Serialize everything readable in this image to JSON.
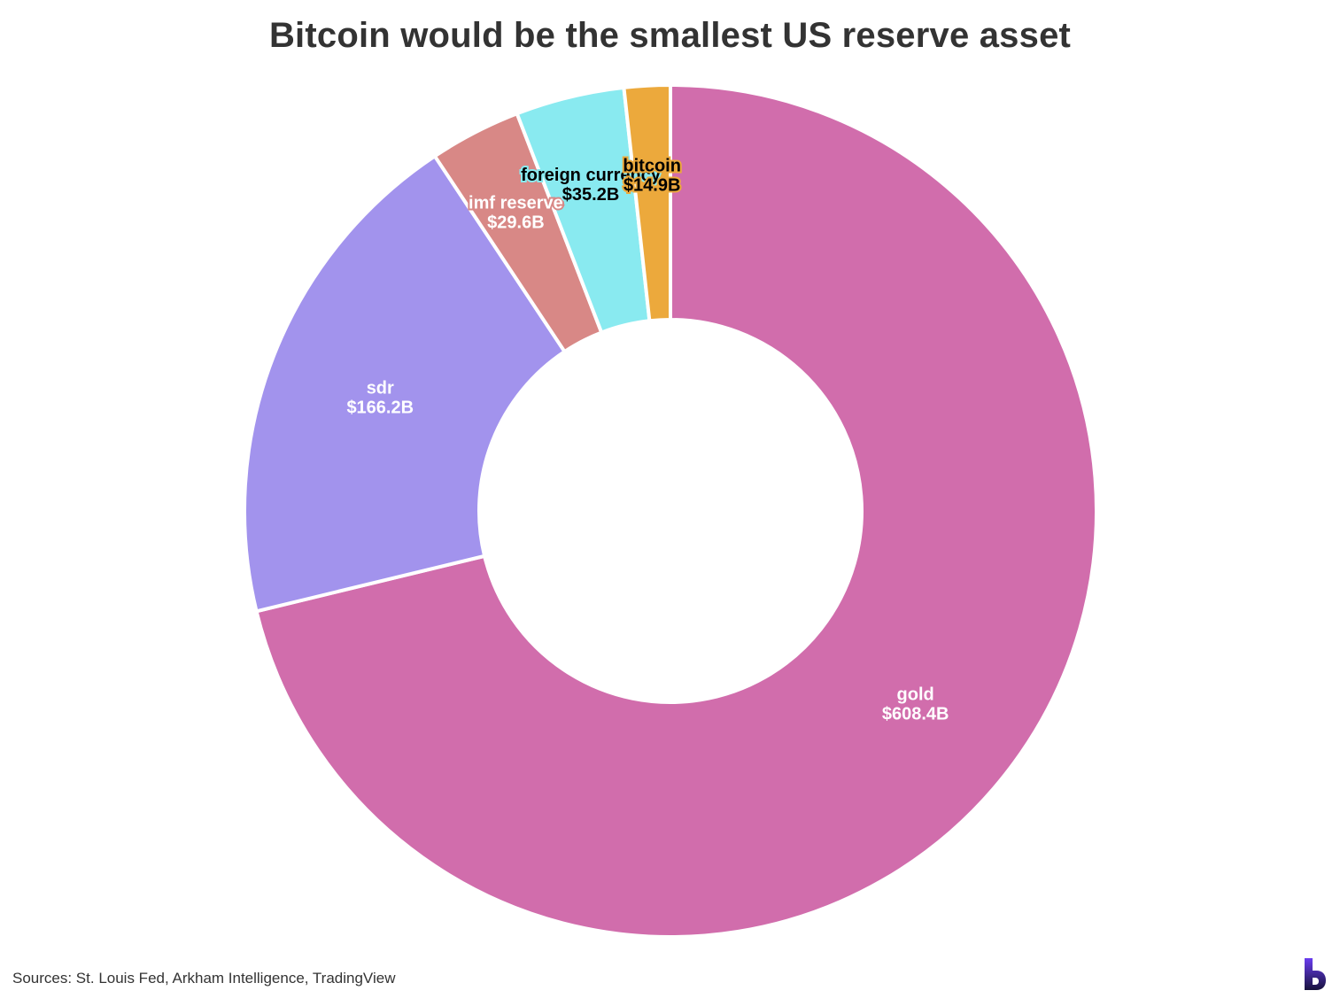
{
  "chart_data": {
    "type": "pie",
    "title": "Bitcoin would be the smallest US reserve asset",
    "variant": "donut",
    "slices": [
      {
        "label": "gold",
        "value_label": "$608.4B",
        "value": 608.4,
        "color": "#d16dac",
        "text_color": "#ffffff"
      },
      {
        "label": "sdr",
        "value_label": "$166.2B",
        "value": 166.2,
        "color": "#a293ed",
        "text_color": "#ffffff"
      },
      {
        "label": "imf reserve",
        "value_label": "$29.6B",
        "value": 29.6,
        "color": "#d88886",
        "text_color": "#ffffff"
      },
      {
        "label": "foreign currency",
        "value_label": "$35.2B",
        "value": 35.2,
        "color": "#89eaf0",
        "text_color": "#000000"
      },
      {
        "label": "bitcoin",
        "value_label": "$14.9B",
        "value": 14.9,
        "color": "#eca93c",
        "text_color": "#000000"
      }
    ],
    "source": "Sources: St. Louis Fed, Arkham Intelligence, TradingView"
  },
  "logo": {
    "name": "brand-b-logo",
    "colors": [
      "#6a3df0",
      "#17123d"
    ]
  }
}
